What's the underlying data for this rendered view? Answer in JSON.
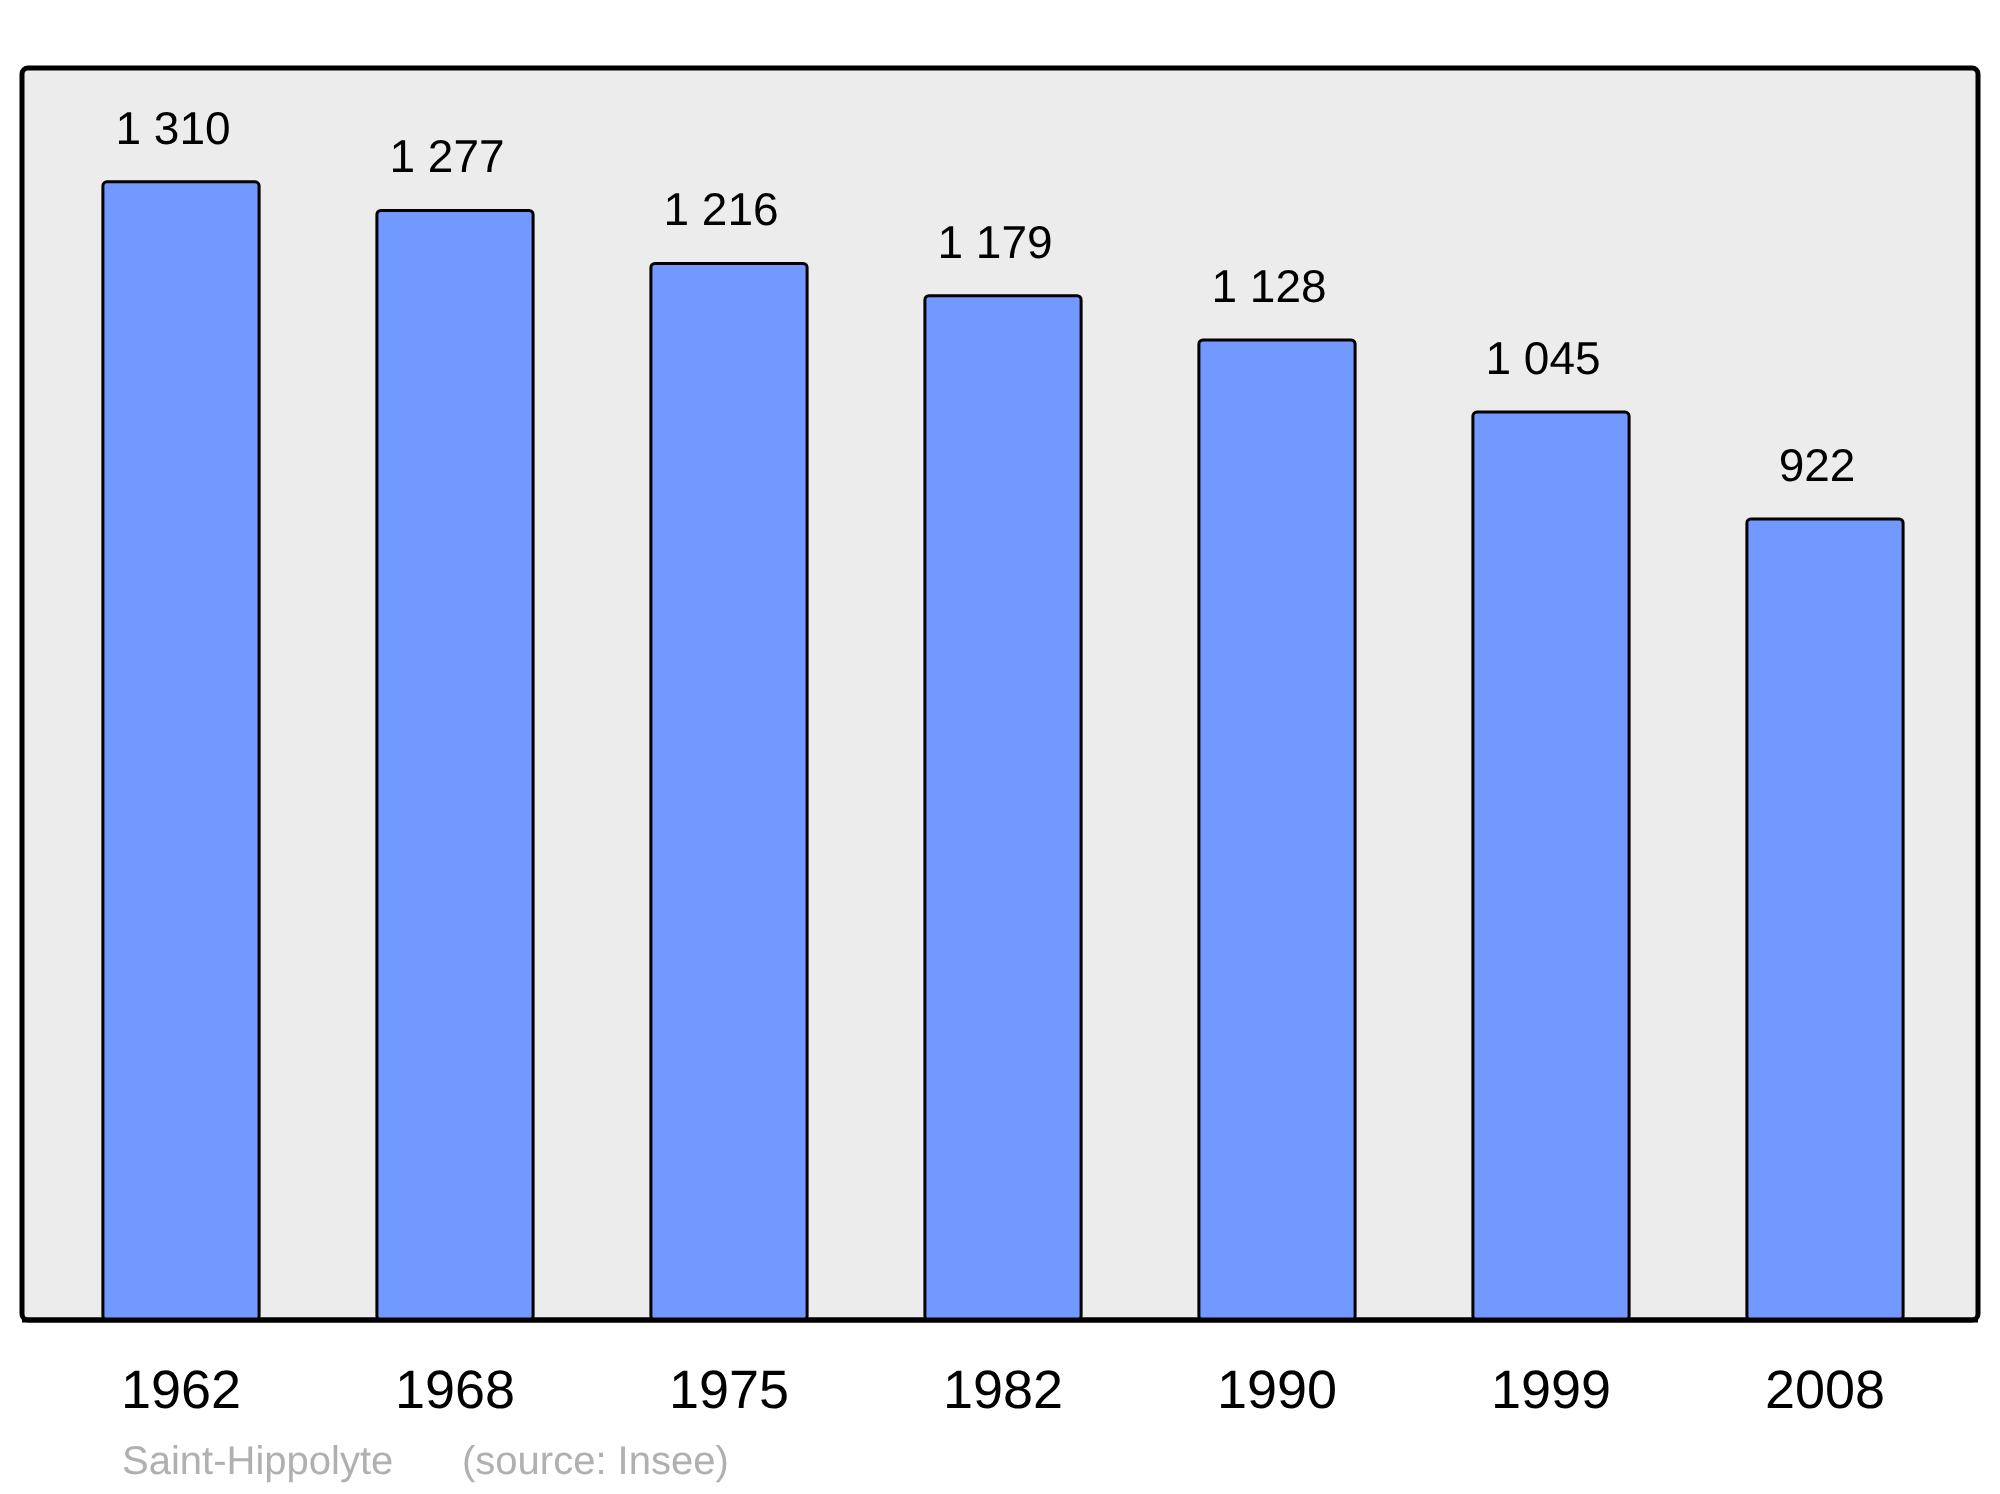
{
  "chart_data": {
    "type": "bar",
    "categories": [
      "1962",
      "1968",
      "1975",
      "1982",
      "1990",
      "1999",
      "2008"
    ],
    "values": [
      1310,
      1277,
      1216,
      1179,
      1128,
      1045,
      922
    ],
    "value_labels": [
      "1 310",
      "1 277",
      "1 216",
      "1 179",
      "1 128",
      "1 045",
      "922"
    ],
    "color": "#7199ff",
    "grid": false,
    "annotations": [
      "Saint-Hippolyte",
      "(source: Insee)"
    ]
  }
}
